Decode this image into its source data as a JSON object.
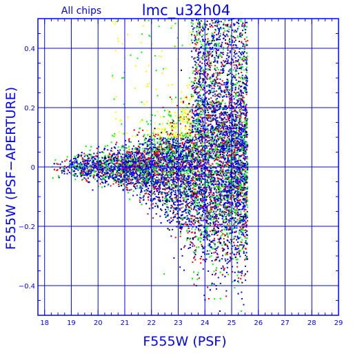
{
  "chart_data": {
    "type": "scatter",
    "title": "lmc_u32h04",
    "subtitle": "All chips",
    "xlabel": "F555W (PSF)",
    "ylabel": "F555W (PSF−APERTURE)",
    "xlim": [
      17.75,
      29.0
    ],
    "ylim": [
      -0.5,
      0.5
    ],
    "xticks": [
      18,
      19,
      20,
      21,
      22,
      23,
      24,
      25,
      26,
      27,
      28,
      29
    ],
    "yticks": [
      -0.4,
      -0.2,
      0,
      0.2,
      0.4
    ],
    "ytick_labels": [
      "−0.4",
      "−0.2",
      "0",
      "0.2",
      "0.4"
    ],
    "grid": true,
    "legend": "none",
    "point_colors": [
      "#0000ff",
      "#00ff00",
      "#ff0000",
      "#000000",
      "#ffff00"
    ],
    "frame_color": "#0000ff",
    "series_note": "Dense star photometry points, approx 20k; bright stars (F555W 18-22) cluster near 0 with spread ~±0.03, fainter stars fan out to roughly ±0.4 near F555W 24-25.5, sharp cutoff at ~25.6.",
    "sample_points": [
      {
        "x": 18.3,
        "y": 0.0
      },
      {
        "x": 19.5,
        "y": 0.01
      },
      {
        "x": 20.5,
        "y": 0.0
      },
      {
        "x": 21.5,
        "y": -0.01
      },
      {
        "x": 22.5,
        "y": 0.02
      },
      {
        "x": 23.0,
        "y": 0.05
      },
      {
        "x": 23.5,
        "y": -0.05
      },
      {
        "x": 24.0,
        "y": 0.12
      },
      {
        "x": 24.5,
        "y": -0.15
      },
      {
        "x": 25.0,
        "y": 0.3
      },
      {
        "x": 25.0,
        "y": -0.3
      },
      {
        "x": 25.3,
        "y": 0.45
      },
      {
        "x": 25.3,
        "y": -0.4
      }
    ]
  }
}
